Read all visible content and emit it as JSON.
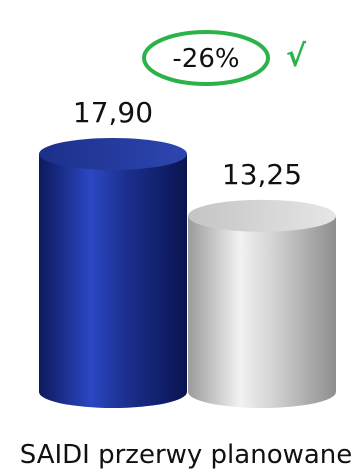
{
  "chart_data": {
    "type": "bar",
    "style": "3d-cylinder",
    "categories": [
      "",
      ""
    ],
    "values": [
      17.9,
      13.25
    ],
    "value_labels": [
      "17,90",
      "13,25"
    ],
    "xlabel": "SAIDI przerwy planowane",
    "ylim": [
      0,
      17.9
    ],
    "grid": false,
    "bar_colors": [
      "#1a2f8c",
      "#c8c8c8"
    ],
    "annotation": {
      "text": "-26%",
      "mark": "√",
      "color": "#2bb34a"
    }
  }
}
